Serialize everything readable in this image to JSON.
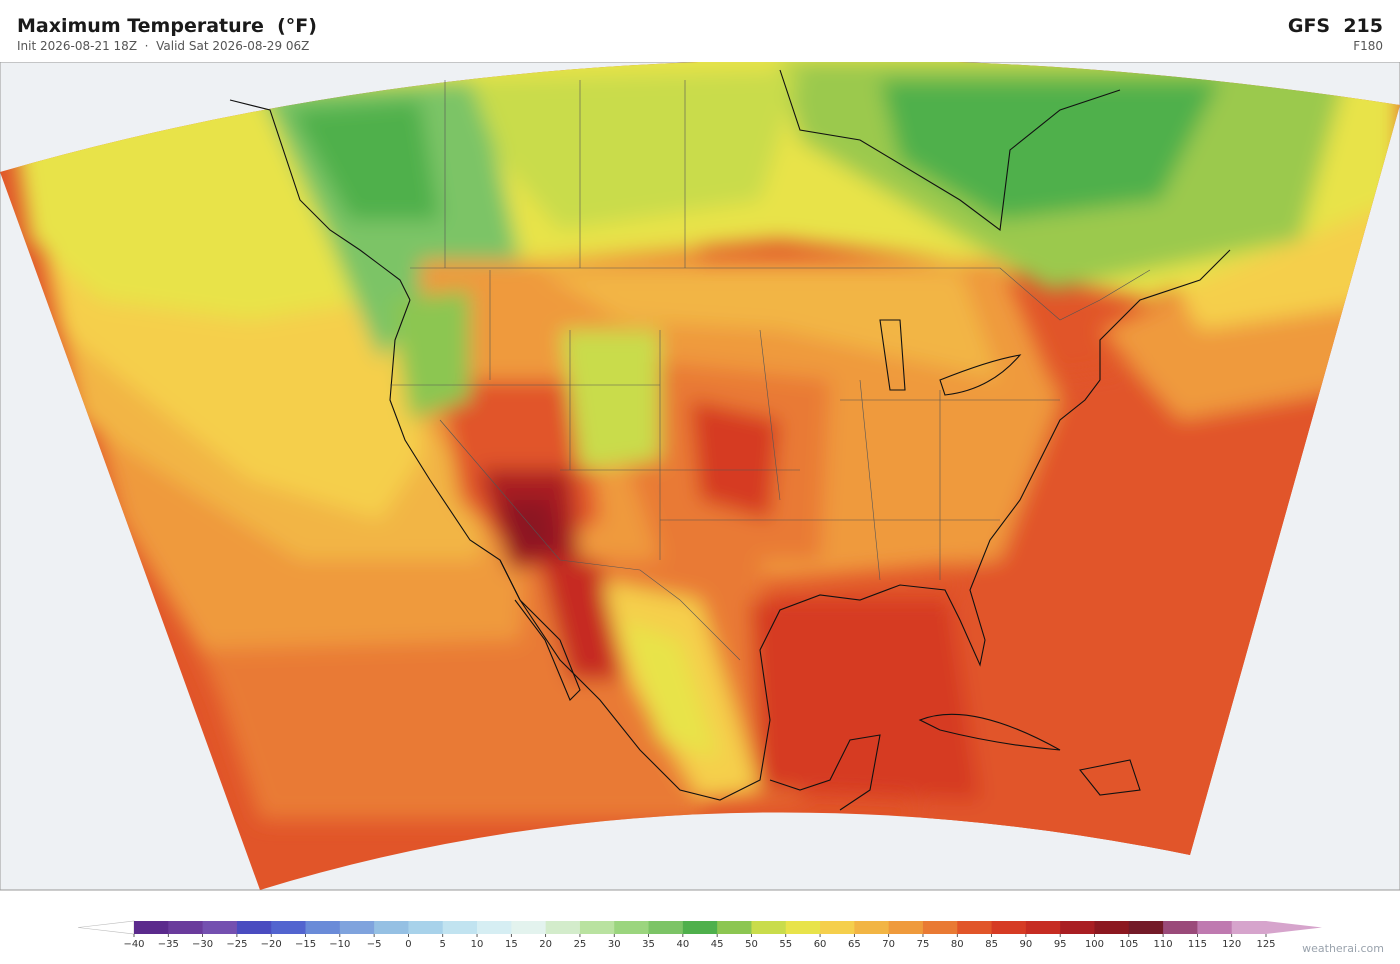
{
  "header": {
    "title": "Maximum Temperature  (°F)",
    "subtitle": "Init 2026-08-21 18Z  ·  Valid Sat 2026-08-29 06Z",
    "model": "GFS  215",
    "forecast_hour": "F180"
  },
  "colorbar": {
    "ticks": [
      {
        "value": -40,
        "label": "−40"
      },
      {
        "value": -35,
        "label": "−35"
      },
      {
        "value": -30,
        "label": "−30"
      },
      {
        "value": -25,
        "label": "−25"
      },
      {
        "value": -20,
        "label": "−20"
      },
      {
        "value": -15,
        "label": "−15"
      },
      {
        "value": -10,
        "label": "−10"
      },
      {
        "value": -5,
        "label": "−5"
      },
      0,
      5,
      10,
      15,
      20,
      25,
      30,
      35,
      40,
      45,
      50,
      55,
      60,
      65,
      70,
      75,
      80,
      85,
      90,
      95,
      100,
      105,
      110,
      115,
      120,
      125
    ],
    "colors": [
      "#5b2a8c",
      "#6a3b9c",
      "#7450b0",
      "#4a4cc0",
      "#5264cf",
      "#6a8bd8",
      "#7fa3dd",
      "#95c0e3",
      "#a8d2ea",
      "#c1e3f0",
      "#d6eef3",
      "#e3f3ee",
      "#d3eccb",
      "#b9e2a0",
      "#9bd57e",
      "#7cc466",
      "#4fb04c",
      "#8cc651",
      "#c9dc4b",
      "#e8e34a",
      "#f5cf4c",
      "#f2b544",
      "#ef9a3c",
      "#e97a34",
      "#e15529",
      "#d63b24",
      "#c62c22",
      "#a91e22",
      "#8c1820",
      "#731a28",
      "#9a4a7a",
      "#bf7ab0",
      "#d6a4cc"
    ],
    "under_color": "#ffffff",
    "over_color": "#d6a4cc"
  },
  "watermark": "weatherai.com"
}
